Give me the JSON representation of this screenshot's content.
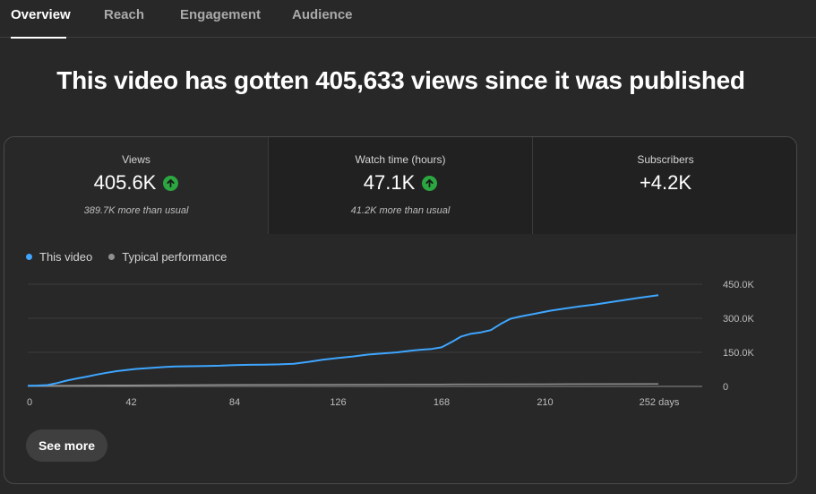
{
  "tabs": [
    {
      "label": "Overview",
      "active": true
    },
    {
      "label": "Reach",
      "active": false
    },
    {
      "label": "Engagement",
      "active": false
    },
    {
      "label": "Audience",
      "active": false
    }
  ],
  "headline": "This video has gotten 405,633 views since it was published",
  "metrics": [
    {
      "label": "Views",
      "value": "405.6K",
      "sub": "389.7K more than usual",
      "trend": "up"
    },
    {
      "label": "Watch time (hours)",
      "value": "47.1K",
      "sub": "41.2K more than usual",
      "trend": "up"
    },
    {
      "label": "Subscribers",
      "value": "+4.2K",
      "sub": "",
      "trend": "none"
    }
  ],
  "legend": [
    {
      "label": "This video",
      "color": "#3ea6ff"
    },
    {
      "label": "Typical performance",
      "color": "#909090"
    }
  ],
  "see_more_label": "See more",
  "colors": {
    "accent_line": "#3ea6ff",
    "typical_line": "#909090",
    "up_badge": "#2ba640"
  },
  "chart_data": {
    "type": "line",
    "xlabel": "",
    "ylabel": "",
    "x_tick_labels": [
      "0",
      "42",
      "84",
      "126",
      "168",
      "210",
      "252 days"
    ],
    "x_ticks": [
      0,
      42,
      84,
      126,
      168,
      210,
      252
    ],
    "y_tick_labels": [
      "0",
      "150.0K",
      "300.0K",
      "450.0K"
    ],
    "y_ticks": [
      0,
      150000,
      300000,
      450000
    ],
    "xlim": [
      0,
      252
    ],
    "ylim": [
      0,
      450000
    ],
    "grid": true,
    "legend_position": "top-left",
    "series": [
      {
        "name": "This video",
        "x": [
          0,
          4,
          8,
          12,
          16,
          20,
          24,
          28,
          32,
          36,
          40,
          44,
          48,
          52,
          56,
          60,
          66,
          72,
          78,
          84,
          90,
          96,
          102,
          108,
          114,
          120,
          126,
          132,
          138,
          144,
          150,
          156,
          160,
          164,
          168,
          172,
          176,
          180,
          184,
          188,
          192,
          196,
          200,
          206,
          212,
          218,
          224,
          230,
          236,
          242,
          248,
          252,
          256
        ],
        "y": [
          3000,
          4000,
          6000,
          15000,
          26000,
          35000,
          43000,
          52000,
          60000,
          67000,
          72000,
          77000,
          80000,
          83000,
          86000,
          88000,
          89000,
          90000,
          91000,
          94000,
          95000,
          96000,
          97000,
          100000,
          108000,
          118000,
          125000,
          132000,
          140000,
          145000,
          150000,
          158000,
          162000,
          165000,
          172000,
          195000,
          220000,
          232000,
          238000,
          248000,
          275000,
          298000,
          308000,
          320000,
          333000,
          343000,
          352000,
          360000,
          370000,
          380000,
          390000,
          396000,
          402000
        ]
      },
      {
        "name": "Typical performance",
        "x": [
          0,
          40,
          84,
          126,
          168,
          210,
          256
        ],
        "y": [
          3000,
          5000,
          7000,
          8000,
          9000,
          10000,
          11000
        ]
      }
    ]
  }
}
